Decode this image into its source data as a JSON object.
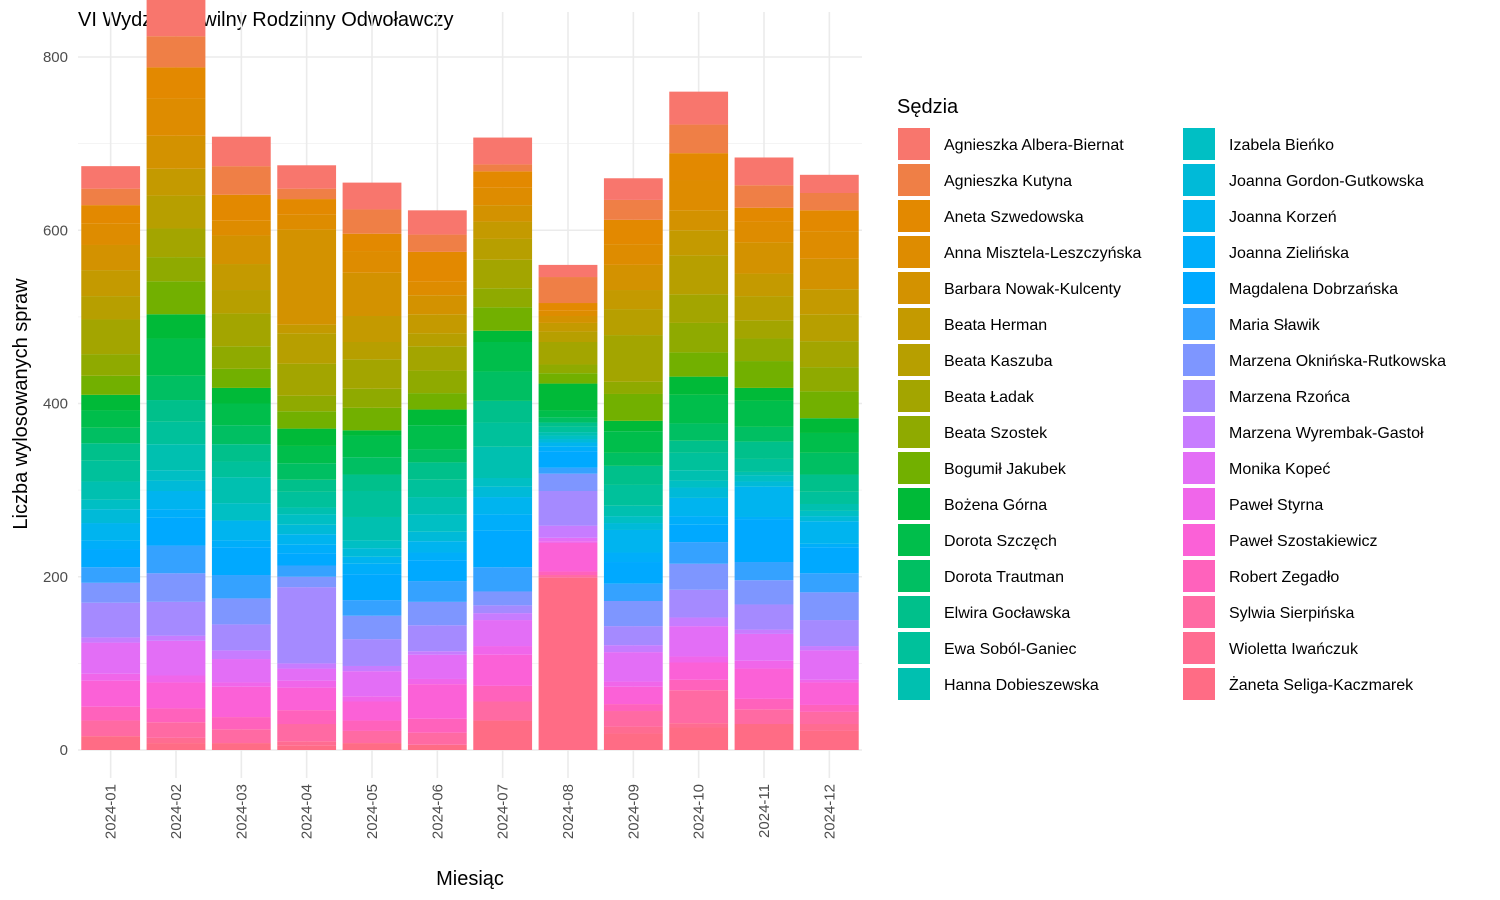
{
  "chart_data": {
    "type": "bar",
    "stacked": true,
    "title": "VI Wydział Cywilny Rodzinny Odwoławczy",
    "xlabel": "Miesiąc",
    "ylabel": "Liczba wylosowanych spraw",
    "ylim": [
      -30,
      850
    ],
    "yticks": [
      0,
      200,
      400,
      600,
      800
    ],
    "grid": true,
    "legend_title": "Sędzia",
    "legend_position": "right",
    "categories": [
      "2024-01",
      "2024-02",
      "2024-03",
      "2024-04",
      "2024-05",
      "2024-06",
      "2024-07",
      "2024-08",
      "2024-09",
      "2024-10",
      "2024-11",
      "2024-12"
    ],
    "series": [
      {
        "name": "Agnieszka Albera-Biernat",
        "color": "#F8766D",
        "values": [
          26,
          44,
          34,
          27,
          31,
          28,
          31,
          14,
          25,
          38,
          32,
          21
        ]
      },
      {
        "name": "Agnieszka Kutyna",
        "color": "#EF7F46",
        "values": [
          19,
          36,
          33,
          12,
          28,
          20,
          8,
          30,
          23,
          33,
          26,
          20
        ]
      },
      {
        "name": "Aneta Szwedowska",
        "color": "#E38900",
        "values": [
          21,
          36,
          30,
          18,
          20,
          34,
          19,
          9,
          28,
          31,
          16,
          24
        ]
      },
      {
        "name": "Anna Misztela-Leszczyńska",
        "color": "#DE8C00",
        "values": [
          25,
          43,
          17,
          17,
          25,
          16,
          20,
          6,
          24,
          35,
          24,
          32
        ]
      },
      {
        "name": "Barbara Nowak-Kulcenty",
        "color": "#D39200",
        "values": [
          29,
          38,
          33,
          110,
          50,
          22,
          19,
          8,
          29,
          23,
          36,
          35
        ]
      },
      {
        "name": "Beata Herman",
        "color": "#C49A00",
        "values": [
          30,
          31,
          30,
          10,
          30,
          22,
          20,
          10,
          22,
          29,
          26,
          29
        ]
      },
      {
        "name": "Beata Kaszuba",
        "color": "#B79F00",
        "values": [
          27,
          38,
          27,
          35,
          20,
          15,
          24,
          12,
          30,
          45,
          28,
          31
        ]
      },
      {
        "name": "Beata Ładak",
        "color": "#A3A500",
        "values": [
          40,
          33,
          38,
          37,
          34,
          28,
          33,
          26,
          54,
          33,
          21,
          30
        ]
      },
      {
        "name": "Beata Szostek",
        "color": "#8FAA00",
        "values": [
          25,
          28,
          26,
          18,
          22,
          26,
          22,
          10,
          14,
          34,
          26,
          28
        ]
      },
      {
        "name": "Bogumił Jakubek",
        "color": "#72B000",
        "values": [
          22,
          38,
          22,
          20,
          26,
          19,
          27,
          12,
          31,
          28,
          31,
          31
        ]
      },
      {
        "name": "Bożena Górna",
        "color": "#00BA38",
        "values": [
          18,
          28,
          18,
          20,
          6,
          18,
          13,
          31,
          12,
          21,
          15,
          17
        ]
      },
      {
        "name": "Dorota Szczęch",
        "color": "#00BE4B",
        "values": [
          20,
          43,
          25,
          20,
          25,
          28,
          34,
          8,
          25,
          33,
          30,
          23
        ]
      },
      {
        "name": "Dorota Trautman",
        "color": "#00BF62",
        "values": [
          18,
          28,
          22,
          19,
          20,
          15,
          34,
          6,
          15,
          20,
          17,
          25
        ]
      },
      {
        "name": "Elwira Gocławska",
        "color": "#00C08B",
        "values": [
          20,
          25,
          20,
          14,
          19,
          20,
          25,
          5,
          22,
          14,
          20,
          20
        ]
      },
      {
        "name": "Ewa Soból-Ganiec",
        "color": "#00C19B",
        "values": [
          24,
          26,
          18,
          18,
          30,
          20,
          28,
          6,
          24,
          20,
          15,
          14
        ]
      },
      {
        "name": "Hanna Dobieszewska",
        "color": "#00C0B0",
        "values": [
          21,
          30,
          30,
          8,
          27,
          20,
          36,
          4,
          12,
          12,
          4,
          8
        ]
      },
      {
        "name": "Izabela Bieńko",
        "color": "#00BFC4",
        "values": [
          11,
          12,
          20,
          12,
          9,
          20,
          10,
          4,
          8,
          8,
          7,
          6
        ]
      },
      {
        "name": "Joanna Gordon-Gutkowska",
        "color": "#00BAD8",
        "values": [
          16,
          12,
          0,
          11,
          10,
          11,
          12,
          4,
          8,
          12,
          6,
          6
        ]
      },
      {
        "name": "Joanna Korzeń",
        "color": "#00B4EF",
        "values": [
          20,
          21,
          23,
          12,
          8,
          13,
          20,
          5,
          26,
          21,
          35,
          26
        ]
      },
      {
        "name": "Joanna Zielińska",
        "color": "#00AEFA",
        "values": [
          10,
          10,
          8,
          10,
          12,
          9,
          19,
          5,
          11,
          10,
          3,
          4
        ]
      },
      {
        "name": "Magdalena Dobrzańska",
        "color": "#00A9FF",
        "values": [
          21,
          32,
          32,
          14,
          30,
          24,
          42,
          19,
          25,
          20,
          49,
          30
        ]
      },
      {
        "name": "Maria Sławik",
        "color": "#35A2FF",
        "values": [
          18,
          32,
          27,
          13,
          18,
          24,
          28,
          7,
          20,
          25,
          21,
          22
        ]
      },
      {
        "name": "Marzena Oknińska-Rutkowska",
        "color": "#7E96FF",
        "values": [
          23,
          33,
          30,
          12,
          27,
          27,
          16,
          20,
          29,
          30,
          28,
          32
        ]
      },
      {
        "name": "Marzena Rzońca",
        "color": "#A58AFF",
        "values": [
          40,
          39,
          30,
          88,
          31,
          30,
          9,
          40,
          22,
          32,
          29,
          30
        ]
      },
      {
        "name": "Marzena Wyrembak-Gastoł",
        "color": "#C77CFF",
        "values": [
          6,
          6,
          10,
          6,
          6,
          4,
          8,
          14,
          8,
          10,
          5,
          5
        ]
      },
      {
        "name": "Monika Kopeć",
        "color": "#E36EF6",
        "values": [
          36,
          40,
          27,
          14,
          29,
          28,
          30,
          4,
          34,
          35,
          31,
          34
        ]
      },
      {
        "name": "Paweł Styrna",
        "color": "#F066EA",
        "values": [
          8,
          8,
          5,
          8,
          6,
          6,
          10,
          2,
          6,
          7,
          9,
          3
        ]
      },
      {
        "name": "Paweł Szostakiewicz",
        "color": "#FB61D7",
        "values": [
          30,
          30,
          35,
          26,
          22,
          40,
          36,
          33,
          20,
          20,
          35,
          26
        ]
      },
      {
        "name": "Robert Zegadło",
        "color": "#FF62BC",
        "values": [
          16,
          16,
          14,
          16,
          12,
          16,
          18,
          4,
          8,
          12,
          12,
          8
        ]
      },
      {
        "name": "Sylwia Sierpińska",
        "color": "#FF6AA3",
        "values": [
          18,
          18,
          16,
          20,
          14,
          14,
          22,
          3,
          18,
          38,
          17,
          14
        ]
      },
      {
        "name": "Wioletta Iwańczuk",
        "color": "#FF6C91",
        "values": [
          0,
          6,
          0,
          5,
          0,
          0,
          0,
          0,
          8,
          5,
          0,
          8
        ]
      },
      {
        "name": "Żaneta Seliga-Kaczmarek",
        "color": "#FF6C85",
        "values": [
          16,
          8,
          8,
          5,
          8,
          6,
          34,
          199,
          19,
          26,
          30,
          22
        ]
      }
    ]
  }
}
